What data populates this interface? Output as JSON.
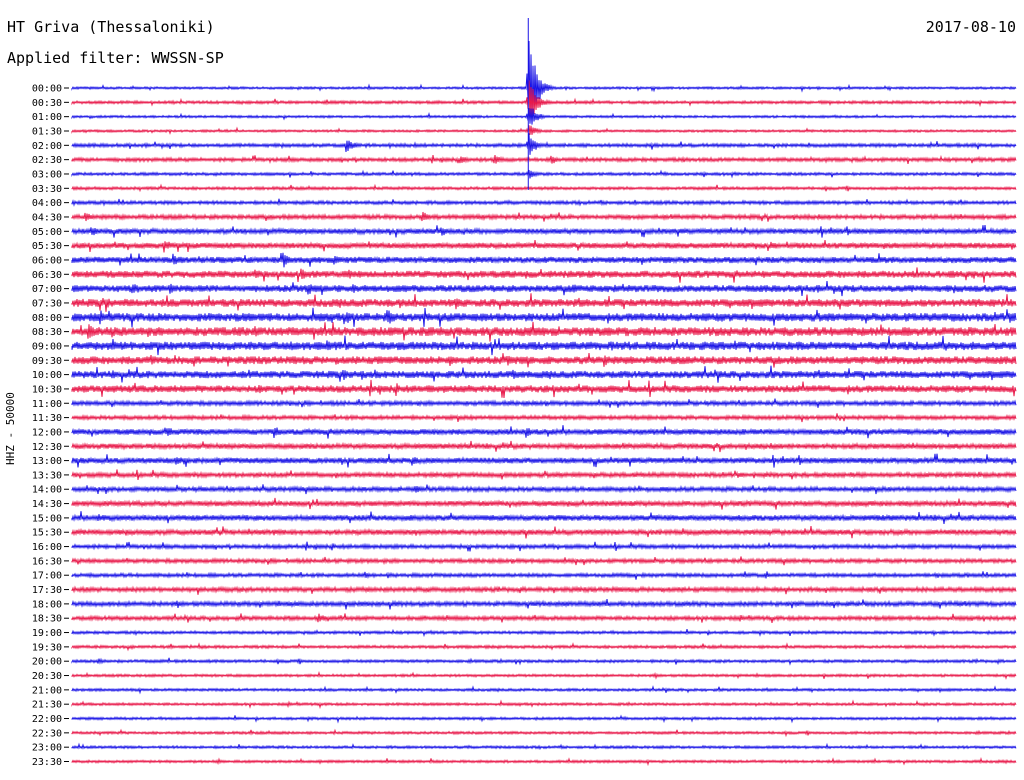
{
  "header": {
    "title": "HT Griva (Thessaloniki)",
    "filter": "Applied filter: WWSSN-SP",
    "date": "2017-08-10"
  },
  "axis": {
    "channel_label": "HHZ - 50000"
  },
  "colors": {
    "blue": "#1a14e6",
    "red": "#e8194a"
  },
  "chart_data": {
    "type": "line",
    "title": "HT Griva (Thessaloniki)",
    "subtitle": "Applied filter: WWSSN-SP",
    "date": "2017-08-10",
    "ylabel": "HHZ - 50000",
    "row_labels": [
      "00:00",
      "00:30",
      "01:00",
      "01:30",
      "02:00",
      "02:30",
      "03:00",
      "03:30",
      "04:00",
      "04:30",
      "05:00",
      "05:30",
      "06:00",
      "06:30",
      "07:00",
      "07:30",
      "08:00",
      "08:30",
      "09:00",
      "09:30",
      "10:00",
      "10:30",
      "11:00",
      "11:30",
      "12:00",
      "12:30",
      "13:00",
      "13:30",
      "14:00",
      "14:30",
      "15:00",
      "15:30",
      "16:00",
      "16:30",
      "17:00",
      "17:30",
      "18:00",
      "18:30",
      "19:00",
      "19:30",
      "20:00",
      "20:30",
      "21:00",
      "21:30",
      "22:00",
      "22:30",
      "23:00",
      "23:30"
    ],
    "row_colors": [
      "blue",
      "red"
    ],
    "base_noise": [
      0.8,
      1.0,
      0.8,
      0.8,
      1.2,
      1.3,
      1.0,
      1.0,
      1.2,
      1.5,
      1.8,
      2.0,
      2.2,
      2.5,
      2.5,
      2.8,
      3.0,
      3.2,
      3.0,
      2.8,
      2.6,
      2.6,
      1.5,
      1.4,
      2.0,
      1.8,
      2.0,
      1.6,
      1.6,
      1.8,
      2.0,
      1.8,
      1.4,
      1.4,
      1.3,
      1.6,
      1.6,
      1.4,
      1.0,
      1.0,
      1.0,
      0.9,
      0.9,
      0.9,
      0.9,
      0.9,
      0.9,
      0.9
    ],
    "events": [
      {
        "row": 0,
        "minute": 14.5,
        "amp": 60
      },
      {
        "row": 1,
        "minute": 14.5,
        "amp": 30
      },
      {
        "row": 2,
        "minute": 14.5,
        "amp": 16
      },
      {
        "row": 3,
        "minute": 14.5,
        "amp": 8
      },
      {
        "row": 4,
        "minute": 14.5,
        "amp": 14
      },
      {
        "row": 4,
        "minute": 8.7,
        "amp": 9
      },
      {
        "row": 5,
        "minute": 12.3,
        "amp": 7
      },
      {
        "row": 5,
        "minute": 13.4,
        "amp": 6
      },
      {
        "row": 5,
        "minute": 15.2,
        "amp": 6
      },
      {
        "row": 6,
        "minute": 14.5,
        "amp": 6
      },
      {
        "row": 9,
        "minute": 0.4,
        "amp": 7
      },
      {
        "row": 9,
        "minute": 11.1,
        "amp": 7
      },
      {
        "row": 10,
        "minute": 0.6,
        "amp": 6
      },
      {
        "row": 10,
        "minute": 11.7,
        "amp": 7
      },
      {
        "row": 11,
        "minute": 2.9,
        "amp": 6
      },
      {
        "row": 12,
        "minute": 3.2,
        "amp": 7
      },
      {
        "row": 12,
        "minute": 6.7,
        "amp": 9
      },
      {
        "row": 12,
        "minute": 8.3,
        "amp": 8
      },
      {
        "row": 13,
        "minute": 5.8,
        "amp": 7
      },
      {
        "row": 13,
        "minute": 7.3,
        "amp": 7
      },
      {
        "row": 13,
        "minute": 8.8,
        "amp": 6
      },
      {
        "row": 14,
        "minute": 1.9,
        "amp": 8
      },
      {
        "row": 14,
        "minute": 3.1,
        "amp": 7
      },
      {
        "row": 14,
        "minute": 7.5,
        "amp": 7
      },
      {
        "row": 14,
        "minute": 8.9,
        "amp": 6
      },
      {
        "row": 14,
        "minute": 15.9,
        "amp": 6
      },
      {
        "row": 14,
        "minute": 17.2,
        "amp": 6
      },
      {
        "row": 15,
        "minute": 1.1,
        "amp": 6
      },
      {
        "row": 15,
        "minute": 10.4,
        "amp": 6
      },
      {
        "row": 15,
        "minute": 12.2,
        "amp": 7
      },
      {
        "row": 16,
        "minute": 8.7,
        "amp": 8
      },
      {
        "row": 16,
        "minute": 10.0,
        "amp": 10
      },
      {
        "row": 16,
        "minute": 13.0,
        "amp": 6
      },
      {
        "row": 17,
        "minute": 0.5,
        "amp": 9
      },
      {
        "row": 17,
        "minute": 1.4,
        "amp": 7
      },
      {
        "row": 17,
        "minute": 5.8,
        "amp": 6
      },
      {
        "row": 18,
        "minute": 1.3,
        "amp": 7
      },
      {
        "row": 18,
        "minute": 3.8,
        "amp": 6
      },
      {
        "row": 18,
        "minute": 6.9,
        "amp": 7
      },
      {
        "row": 18,
        "minute": 8.1,
        "amp": 6
      },
      {
        "row": 18,
        "minute": 17.1,
        "amp": 7
      },
      {
        "row": 19,
        "minute": 2.5,
        "amp": 6
      },
      {
        "row": 19,
        "minute": 12.0,
        "amp": 7
      },
      {
        "row": 19,
        "minute": 13.8,
        "amp": 7
      },
      {
        "row": 19,
        "minute": 16.9,
        "amp": 8
      },
      {
        "row": 20,
        "minute": 8.6,
        "amp": 7
      },
      {
        "row": 20,
        "minute": 9.6,
        "amp": 6
      },
      {
        "row": 20,
        "minute": 14.0,
        "amp": 7
      },
      {
        "row": 21,
        "minute": 5.9,
        "amp": 6
      },
      {
        "row": 21,
        "minute": 11.8,
        "amp": 6
      },
      {
        "row": 21,
        "minute": 12.6,
        "amp": 5
      },
      {
        "row": 24,
        "minute": 3.0,
        "amp": 7
      },
      {
        "row": 24,
        "minute": 6.4,
        "amp": 8
      },
      {
        "row": 24,
        "minute": 14.4,
        "amp": 7
      },
      {
        "row": 26,
        "minute": 3.3,
        "amp": 7
      },
      {
        "row": 26,
        "minute": 10.8,
        "amp": 6
      },
      {
        "row": 28,
        "minute": 10.9,
        "amp": 5
      },
      {
        "row": 30,
        "minute": 0.8,
        "amp": 5
      },
      {
        "row": 34,
        "minute": 9.3,
        "amp": 4
      },
      {
        "row": 37,
        "minute": 7.8,
        "amp": 6
      },
      {
        "row": 40,
        "minute": 0.8,
        "amp": 4
      }
    ]
  }
}
